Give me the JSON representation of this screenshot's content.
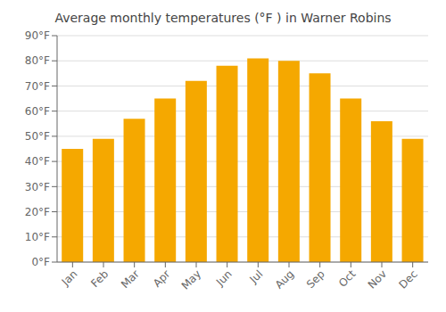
{
  "chart_data": {
    "type": "bar",
    "title": "Average monthly temperatures (°F ) in Warner Robins",
    "categories": [
      "Jan",
      "Feb",
      "Mar",
      "Apr",
      "May",
      "Jun",
      "Jul",
      "Aug",
      "Sep",
      "Oct",
      "Nov",
      "Dec"
    ],
    "values": [
      45,
      49,
      57,
      65,
      72,
      78,
      81,
      80,
      75,
      65,
      56,
      49
    ],
    "color": "#F5A800",
    "ylim": [
      0,
      90
    ],
    "yticks": [
      {
        "value": 0,
        "label": "0°F"
      },
      {
        "value": 10,
        "label": "10°F"
      },
      {
        "value": 20,
        "label": "20°F"
      },
      {
        "value": 30,
        "label": "30°F"
      },
      {
        "value": 40,
        "label": "40°F"
      },
      {
        "value": 50,
        "label": "50°F"
      },
      {
        "value": 60,
        "label": "60°F"
      },
      {
        "value": 70,
        "label": "70°F"
      },
      {
        "value": 80,
        "label": "80°F"
      },
      {
        "value": 90,
        "label": "90°F"
      }
    ],
    "grid": true
  }
}
